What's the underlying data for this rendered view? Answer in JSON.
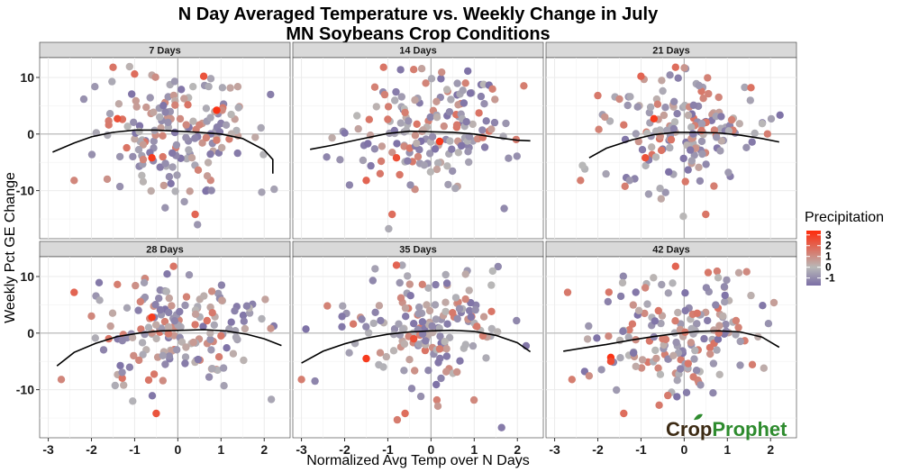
{
  "title_line1": "N Day Averaged Temperature vs. Weekly Change in July",
  "title_line2": "MN Soybeans Crop Conditions",
  "xlabel": "Normalized Avg Temp over N Days",
  "ylabel": "Weekly Pct GE Change",
  "legend": {
    "title": "Precipitation",
    "ticks": [
      "3",
      "2",
      "1",
      "0",
      "-1"
    ],
    "tick_values": [
      3,
      2,
      1,
      0,
      -1
    ],
    "range": [
      -1.7,
      3.4
    ],
    "colors": {
      "low": "#7b6ea6",
      "mid": "#b8b8b8",
      "high": "#ff2a0a"
    }
  },
  "logo": {
    "part1": "Crop",
    "part2": "Prophet",
    "color1": "#3d2b14",
    "color2": "#2e8b2e"
  },
  "chart_data": {
    "type": "scatter",
    "facet_labels": [
      "7 Days",
      "14 Days",
      "21 Days",
      "28 Days",
      "35 Days",
      "42 Days"
    ],
    "xlim": [
      -3.2,
      2.6
    ],
    "ylim": [
      -18.5,
      13.5
    ],
    "x_ticks": [
      -3,
      -2,
      -1,
      0,
      1,
      2
    ],
    "y_ticks": [
      10,
      0,
      -10
    ],
    "x_tick_labels": [
      "-3",
      "-2",
      "-1",
      "0",
      "1",
      "2"
    ],
    "y_tick_labels": [
      "10",
      "0",
      "-10"
    ],
    "grid": true,
    "points_per_panel_approx": 160,
    "panels": [
      {
        "label": "7 Days",
        "smooth": [
          [
            -2.9,
            -3.2
          ],
          [
            -2.4,
            -1.6
          ],
          [
            -2.0,
            -0.5
          ],
          [
            -1.5,
            0.3
          ],
          [
            -1.0,
            0.7
          ],
          [
            -0.5,
            0.7
          ],
          [
            0.0,
            0.5
          ],
          [
            0.5,
            0.3
          ],
          [
            1.0,
            0.0
          ],
          [
            1.5,
            -0.8
          ],
          [
            2.0,
            -2.8
          ],
          [
            2.2,
            -4.5
          ],
          [
            2.2,
            -7.0
          ]
        ],
        "highlights": [
          [
            -1.4,
            2.7,
            2.5
          ],
          [
            -0.6,
            -4.2,
            3.0
          ],
          [
            0.6,
            10.2,
            2.4
          ],
          [
            0.9,
            4.2,
            3.2
          ],
          [
            0.4,
            -14.2,
            2.0
          ],
          [
            -1.5,
            11.8,
            1.6
          ],
          [
            -1.0,
            10.6,
            1.8
          ],
          [
            -2.4,
            -8.2,
            1.2
          ],
          [
            -1.6,
            1.6,
            1.5
          ],
          [
            0.5,
            1.6,
            1.2
          ],
          [
            -0.8,
            -4.5,
            1.2
          ],
          [
            0.9,
            -1.1,
            1.4
          ]
        ]
      },
      {
        "label": "14 Days",
        "smooth": [
          [
            -2.8,
            -2.7
          ],
          [
            -2.3,
            -2.0
          ],
          [
            -1.7,
            -1.0
          ],
          [
            -1.0,
            0.1
          ],
          [
            -0.5,
            0.5
          ],
          [
            0.0,
            0.4
          ],
          [
            0.5,
            0.3
          ],
          [
            1.0,
            0.0
          ],
          [
            1.5,
            -0.6
          ],
          [
            2.0,
            -1.1
          ],
          [
            2.3,
            -1.2
          ]
        ],
        "highlights": [
          [
            -0.8,
            -4.2,
            2.5
          ],
          [
            0.2,
            -1.3,
            3.0
          ],
          [
            -1.5,
            -8.2,
            2.0
          ],
          [
            -0.9,
            -14.2,
            1.8
          ],
          [
            -1.1,
            11.8,
            1.6
          ],
          [
            -0.4,
            11.4,
            1.4
          ],
          [
            -1.0,
            2.6,
            1.5
          ],
          [
            -0.6,
            3.8,
            1.4
          ],
          [
            0.6,
            1.6,
            1.5
          ],
          [
            0.8,
            9.0,
            1.3
          ],
          [
            1.2,
            -0.6,
            1.5
          ],
          [
            -0.3,
            -4.0,
            1.2
          ]
        ]
      },
      {
        "label": "21 Days",
        "smooth": [
          [
            -2.2,
            -4.2
          ],
          [
            -1.8,
            -2.5
          ],
          [
            -1.2,
            -1.0
          ],
          [
            -0.7,
            -0.1
          ],
          [
            -0.2,
            0.3
          ],
          [
            0.3,
            0.3
          ],
          [
            0.8,
            0.2
          ],
          [
            1.3,
            -0.2
          ],
          [
            1.8,
            -0.8
          ],
          [
            2.2,
            -1.4
          ]
        ],
        "highlights": [
          [
            -0.7,
            2.7,
            3.0
          ],
          [
            -0.9,
            -4.2,
            2.5
          ],
          [
            -1.0,
            10.2,
            2.0
          ],
          [
            -0.2,
            11.8,
            1.8
          ],
          [
            -2.4,
            -8.2,
            1.4
          ],
          [
            0.5,
            -14.2,
            1.6
          ],
          [
            -1.4,
            1.6,
            1.5
          ],
          [
            -0.3,
            -1.0,
            1.6
          ],
          [
            0.4,
            0.6,
            1.5
          ],
          [
            1.1,
            2.5,
            1.3
          ],
          [
            -2.0,
            6.8,
            1.5
          ],
          [
            0.8,
            6.5,
            1.2
          ]
        ]
      },
      {
        "label": "28 Days",
        "smooth": [
          [
            -2.8,
            -5.8
          ],
          [
            -2.4,
            -3.4
          ],
          [
            -1.9,
            -1.8
          ],
          [
            -1.4,
            -0.6
          ],
          [
            -0.9,
            0.0
          ],
          [
            -0.4,
            0.4
          ],
          [
            0.1,
            0.5
          ],
          [
            0.6,
            0.6
          ],
          [
            1.1,
            0.4
          ],
          [
            1.6,
            -0.2
          ],
          [
            2.0,
            -1.0
          ],
          [
            2.4,
            -2.2
          ]
        ],
        "highlights": [
          [
            -0.6,
            2.8,
            3.0
          ],
          [
            -0.5,
            -14.2,
            2.4
          ],
          [
            -2.4,
            7.2,
            2.0
          ],
          [
            -0.1,
            11.8,
            1.6
          ],
          [
            -2.7,
            -8.2,
            1.2
          ],
          [
            0.8,
            3.6,
            1.5
          ],
          [
            -1.6,
            -1.0,
            1.6
          ],
          [
            0.4,
            1.5,
            1.5
          ],
          [
            -0.9,
            -4.8,
            1.2
          ],
          [
            1.0,
            -0.5,
            1.5
          ],
          [
            -1.4,
            8.6,
            1.4
          ],
          [
            0.2,
            6.4,
            1.3
          ]
        ]
      },
      {
        "label": "35 Days",
        "smooth": [
          [
            -3.0,
            -5.3
          ],
          [
            -2.5,
            -3.2
          ],
          [
            -2.0,
            -1.9
          ],
          [
            -1.5,
            -0.9
          ],
          [
            -1.0,
            -0.2
          ],
          [
            -0.5,
            0.2
          ],
          [
            0.0,
            0.4
          ],
          [
            0.5,
            0.5
          ],
          [
            1.0,
            0.3
          ],
          [
            1.5,
            -0.4
          ],
          [
            2.0,
            -1.7
          ],
          [
            2.3,
            -3.3
          ]
        ],
        "highlights": [
          [
            -1.5,
            -4.5,
            3.0
          ],
          [
            -0.4,
            -1.0,
            2.5
          ],
          [
            -0.8,
            12.0,
            2.0
          ],
          [
            -0.6,
            -14.2,
            1.8
          ],
          [
            -3.0,
            -8.2,
            1.4
          ],
          [
            -1.8,
            1.6,
            1.5
          ],
          [
            0.5,
            3.6,
            1.5
          ],
          [
            1.2,
            -0.5,
            1.4
          ],
          [
            -0.2,
            8.6,
            1.3
          ],
          [
            0.8,
            6.0,
            1.2
          ],
          [
            -2.4,
            4.8,
            1.3
          ],
          [
            0.2,
            -2.8,
            1.4
          ]
        ]
      },
      {
        "label": "42 Days",
        "smooth": [
          [
            -2.8,
            -3.2
          ],
          [
            -2.3,
            -2.6
          ],
          [
            -1.8,
            -2.0
          ],
          [
            -1.2,
            -1.2
          ],
          [
            -0.7,
            -0.6
          ],
          [
            -0.2,
            -0.1
          ],
          [
            0.3,
            0.3
          ],
          [
            0.8,
            0.4
          ],
          [
            1.3,
            0.2
          ],
          [
            1.8,
            -0.7
          ],
          [
            2.2,
            -2.5
          ]
        ],
        "highlights": [
          [
            -1.7,
            -4.3,
            3.2
          ],
          [
            -1.7,
            -5.0,
            2.6
          ],
          [
            -0.2,
            11.8,
            2.0
          ],
          [
            -1.4,
            -14.2,
            1.8
          ],
          [
            -2.6,
            -8.2,
            1.4
          ],
          [
            -2.7,
            7.2,
            1.5
          ],
          [
            -1.2,
            1.6,
            1.5
          ],
          [
            0.3,
            3.5,
            1.6
          ],
          [
            0.8,
            0.0,
            1.5
          ],
          [
            -0.5,
            -1.0,
            1.4
          ],
          [
            1.2,
            2.2,
            1.3
          ],
          [
            -0.9,
            8.0,
            1.2
          ]
        ]
      }
    ]
  }
}
